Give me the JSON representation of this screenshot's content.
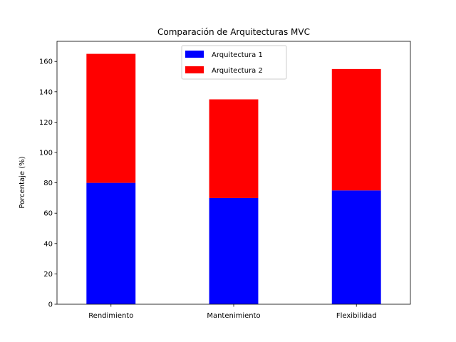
{
  "chart_data": {
    "type": "bar",
    "stacked": true,
    "title": "Comparación de Arquitecturas MVC",
    "xlabel": "",
    "ylabel": "Porcentaje (%)",
    "categories": [
      "Rendimiento",
      "Mantenimiento",
      "Flexibilidad"
    ],
    "series": [
      {
        "name": "Arquitectura 1",
        "values": [
          80,
          70,
          75
        ],
        "color": "#0000ff"
      },
      {
        "name": "Arquitectura 2",
        "values": [
          85,
          65,
          80
        ],
        "color": "#ff0000"
      }
    ],
    "ylim": [
      0,
      173.25
    ],
    "yticks": [
      0,
      20,
      40,
      60,
      80,
      100,
      120,
      140,
      160
    ],
    "grid": false,
    "legend": "top-center"
  }
}
